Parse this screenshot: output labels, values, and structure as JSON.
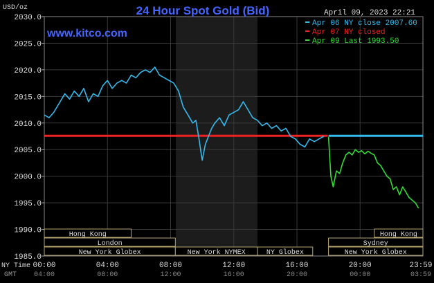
{
  "chart_data": {
    "type": "line",
    "title": "24 Hour Spot Gold (Bid)",
    "watermark": "www.kitco.com",
    "timestamp": "April 09, 2023 22:21",
    "ylabel": "USD/oz",
    "ylim": [
      1985,
      2030
    ],
    "yticks": [
      "2030.0",
      "2025.0",
      "2020.0",
      "2015.0",
      "2010.0",
      "2005.0",
      "2000.0",
      "1995.0",
      "1990.0",
      "1985.0"
    ],
    "x_row_labels": [
      "NY Time",
      "GMT"
    ],
    "xticks_ny": [
      "00:00",
      "04:00",
      "08:00",
      "12:00",
      "16:00",
      "20:00",
      "23:59"
    ],
    "xticks_gmt": [
      "04:00",
      "08:00",
      "12:00",
      "16:00",
      "20:00",
      "00:00",
      "03:59"
    ],
    "grid": true,
    "legend_position": "top-right",
    "legend": [
      {
        "label": "Apr 06 NY close 2007.60",
        "color": "#33bbee"
      },
      {
        "label": "Apr 07 NY closed",
        "color": "#ee2222"
      },
      {
        "label": "Apr 09 Last 1993.50",
        "color": "#33dd33"
      }
    ],
    "reference_lines": [
      {
        "name": "Apr 06 NY close",
        "value": 2007.6,
        "x_range": [
          18.0,
          23.98
        ],
        "color": "#33bbee"
      },
      {
        "name": "Apr 07 NY closed",
        "value": 2007.6,
        "x_range": [
          0.0,
          17.95
        ],
        "color": "#ee2222"
      }
    ],
    "shaded_session": {
      "name": "New York NYMEX",
      "x_range": [
        8.33,
        13.5
      ]
    },
    "sessions": [
      {
        "name": "Hong Kong",
        "row": 1,
        "x_range": [
          0.0,
          5.5
        ]
      },
      {
        "name": "London",
        "row": 2,
        "x_range": [
          0.0,
          8.3
        ]
      },
      {
        "name": "New York Globex",
        "row": 3,
        "x_range": [
          0.0,
          8.3
        ]
      },
      {
        "name": "New York NYMEX",
        "row": 3,
        "x_range": [
          8.3,
          13.5
        ]
      },
      {
        "name": "NY Globex",
        "row": 3,
        "x_range": [
          13.5,
          17.0
        ]
      },
      {
        "name": "Hong Kong",
        "row": 1,
        "x_range": [
          20.9,
          23.98
        ]
      },
      {
        "name": "Sydney",
        "row": 2,
        "x_range": [
          18.0,
          23.98
        ]
      },
      {
        "name": "New York Globex",
        "row": 3,
        "x_range": [
          18.0,
          23.98
        ]
      }
    ],
    "series": [
      {
        "name": "Apr 07",
        "color": "#33bbee",
        "x": [
          0.0,
          0.3,
          0.6,
          1.0,
          1.3,
          1.6,
          1.9,
          2.2,
          2.5,
          2.8,
          3.1,
          3.4,
          3.7,
          4.0,
          4.3,
          4.6,
          4.9,
          5.2,
          5.5,
          5.8,
          6.1,
          6.4,
          6.7,
          7.0,
          7.3,
          7.6,
          7.9,
          8.2,
          8.5,
          8.8,
          9.1,
          9.4,
          9.6,
          9.8,
          10.0,
          10.2,
          10.4,
          10.6,
          10.8,
          11.1,
          11.4,
          11.7,
          12.0,
          12.3,
          12.6,
          12.9,
          13.2,
          13.5,
          13.8,
          14.1,
          14.4,
          14.7,
          15.0,
          15.3,
          15.6,
          15.9,
          16.2,
          16.5,
          16.8,
          17.1,
          17.4,
          17.7
        ],
        "y": [
          2011.5,
          2011.0,
          2012.0,
          2014.0,
          2015.5,
          2014.5,
          2016.0,
          2015.0,
          2016.5,
          2014.0,
          2015.5,
          2015.0,
          2017.0,
          2018.0,
          2016.5,
          2017.5,
          2018.0,
          2017.5,
          2019.0,
          2018.5,
          2019.5,
          2020.0,
          2019.5,
          2020.5,
          2019.0,
          2018.5,
          2018.0,
          2017.5,
          2016.0,
          2013.0,
          2011.5,
          2010.0,
          2010.5,
          2007.0,
          2003.0,
          2006.0,
          2007.5,
          2009.0,
          2010.0,
          2011.0,
          2009.5,
          2011.5,
          2012.0,
          2012.5,
          2014.0,
          2012.5,
          2011.0,
          2010.5,
          2009.5,
          2010.0,
          2009.0,
          2009.5,
          2008.5,
          2009.0,
          2007.5,
          2007.0,
          2006.0,
          2005.5,
          2007.0,
          2006.5,
          2007.0,
          2007.5
        ]
      },
      {
        "name": "Apr 09",
        "color": "#33dd33",
        "x": [
          18.0,
          18.15,
          18.3,
          18.5,
          18.7,
          18.9,
          19.1,
          19.3,
          19.5,
          19.7,
          19.9,
          20.1,
          20.3,
          20.5,
          20.7,
          20.9,
          21.1,
          21.3,
          21.5,
          21.7,
          21.9,
          22.1,
          22.3,
          22.5,
          22.7,
          22.9,
          23.1,
          23.3,
          23.5,
          23.7
        ],
        "y": [
          2007.4,
          2000.0,
          1998.0,
          2001.0,
          2000.5,
          2002.5,
          2004.0,
          2004.5,
          2004.0,
          2005.0,
          2004.5,
          2004.8,
          2004.2,
          2004.7,
          2004.3,
          2004.0,
          2002.5,
          2002.0,
          2001.0,
          2000.0,
          1999.5,
          1997.5,
          1998.0,
          1996.5,
          1998.0,
          1997.0,
          1996.0,
          1995.5,
          1995.0,
          1994.0
        ]
      }
    ]
  }
}
